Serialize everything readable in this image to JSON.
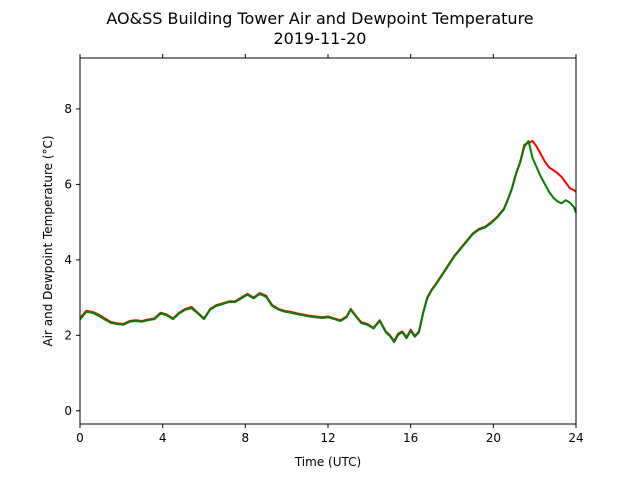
{
  "chart_data": {
    "type": "line",
    "title": "AO&SS Building Tower Air and Dewpoint Temperature",
    "subtitle": "2019-11-20",
    "xlabel": "Time (UTC)",
    "ylabel": "Air and Dewpoint Temperature (°C)",
    "xlim": [
      0,
      24
    ],
    "ylim": [
      -0.35,
      9.35
    ],
    "xticks": [
      0,
      4,
      8,
      12,
      16,
      20,
      24
    ],
    "yticks": [
      0,
      2,
      4,
      6,
      8
    ],
    "grid": false,
    "series": [
      {
        "color": "#ff0000",
        "x": [
          0,
          0.3,
          0.6,
          0.9,
          1.2,
          1.5,
          1.8,
          2.1,
          2.4,
          2.7,
          3.0,
          3.3,
          3.6,
          3.9,
          4.2,
          4.5,
          4.8,
          5.1,
          5.4,
          5.7,
          6.0,
          6.3,
          6.6,
          6.9,
          7.2,
          7.5,
          7.8,
          8.1,
          8.4,
          8.7,
          9.0,
          9.3,
          9.6,
          9.9,
          10.2,
          10.5,
          10.8,
          11.1,
          11.4,
          11.7,
          12.0,
          12.3,
          12.6,
          12.9,
          13.1,
          13.3,
          13.6,
          13.9,
          14.2,
          14.5,
          14.8,
          15.0,
          15.2,
          15.4,
          15.6,
          15.8,
          16.0,
          16.2,
          16.4,
          16.6,
          16.8,
          17.0,
          17.2,
          17.5,
          17.8,
          18.1,
          18.4,
          18.7,
          19.0,
          19.3,
          19.6,
          19.9,
          20.2,
          20.5,
          20.7,
          20.9,
          21.1,
          21.3,
          21.5,
          21.7,
          21.9,
          22.1,
          22.3,
          22.5,
          22.7,
          22.9,
          23.1,
          23.3,
          23.5,
          23.7,
          23.9,
          24.0
        ],
        "y": [
          2.45,
          2.65,
          2.62,
          2.55,
          2.45,
          2.35,
          2.32,
          2.3,
          2.38,
          2.4,
          2.38,
          2.42,
          2.45,
          2.6,
          2.55,
          2.45,
          2.6,
          2.7,
          2.75,
          2.6,
          2.45,
          2.7,
          2.8,
          2.85,
          2.9,
          2.9,
          3.0,
          3.1,
          3.0,
          3.12,
          3.05,
          2.8,
          2.7,
          2.65,
          2.62,
          2.58,
          2.55,
          2.52,
          2.5,
          2.48,
          2.5,
          2.45,
          2.4,
          2.5,
          2.7,
          2.55,
          2.35,
          2.3,
          2.2,
          2.4,
          2.1,
          2.0,
          1.85,
          2.05,
          2.1,
          1.95,
          2.15,
          1.98,
          2.1,
          2.6,
          3.0,
          3.2,
          3.35,
          3.6,
          3.85,
          4.1,
          4.3,
          4.5,
          4.7,
          4.82,
          4.88,
          5.0,
          5.15,
          5.35,
          5.6,
          5.9,
          6.3,
          6.6,
          7.05,
          7.1,
          7.15,
          7.0,
          6.8,
          6.6,
          6.45,
          6.38,
          6.3,
          6.2,
          6.05,
          5.9,
          5.85,
          5.8
        ]
      },
      {
        "color": "#008000",
        "x": [
          0,
          0.3,
          0.6,
          0.9,
          1.2,
          1.5,
          1.8,
          2.1,
          2.4,
          2.7,
          3.0,
          3.3,
          3.6,
          3.9,
          4.2,
          4.5,
          4.8,
          5.1,
          5.4,
          5.7,
          6.0,
          6.3,
          6.6,
          6.9,
          7.2,
          7.5,
          7.8,
          8.1,
          8.4,
          8.7,
          9.0,
          9.3,
          9.6,
          9.9,
          10.2,
          10.5,
          10.8,
          11.1,
          11.4,
          11.7,
          12.0,
          12.3,
          12.6,
          12.9,
          13.1,
          13.3,
          13.6,
          13.9,
          14.2,
          14.5,
          14.8,
          15.0,
          15.2,
          15.4,
          15.6,
          15.8,
          16.0,
          16.2,
          16.4,
          16.6,
          16.8,
          17.0,
          17.2,
          17.5,
          17.8,
          18.1,
          18.4,
          18.7,
          19.0,
          19.3,
          19.6,
          19.9,
          20.2,
          20.5,
          20.7,
          20.9,
          21.1,
          21.3,
          21.5,
          21.7,
          21.9,
          22.1,
          22.3,
          22.5,
          22.7,
          22.9,
          23.1,
          23.3,
          23.5,
          23.7,
          23.9,
          24.0
        ],
        "y": [
          2.42,
          2.62,
          2.6,
          2.52,
          2.42,
          2.33,
          2.3,
          2.28,
          2.36,
          2.38,
          2.36,
          2.4,
          2.43,
          2.58,
          2.53,
          2.43,
          2.58,
          2.68,
          2.72,
          2.58,
          2.43,
          2.68,
          2.78,
          2.83,
          2.88,
          2.88,
          2.98,
          3.08,
          2.98,
          3.1,
          3.02,
          2.78,
          2.68,
          2.63,
          2.6,
          2.56,
          2.53,
          2.5,
          2.48,
          2.46,
          2.48,
          2.43,
          2.38,
          2.48,
          2.68,
          2.53,
          2.33,
          2.28,
          2.18,
          2.38,
          2.08,
          1.98,
          1.82,
          2.02,
          2.08,
          1.92,
          2.12,
          1.96,
          2.08,
          2.58,
          2.98,
          3.18,
          3.33,
          3.58,
          3.83,
          4.08,
          4.28,
          4.48,
          4.68,
          4.8,
          4.86,
          4.98,
          5.13,
          5.33,
          5.58,
          5.88,
          6.28,
          6.58,
          7.0,
          7.15,
          6.7,
          6.45,
          6.2,
          6.0,
          5.8,
          5.65,
          5.55,
          5.5,
          5.58,
          5.52,
          5.4,
          5.25
        ]
      }
    ]
  }
}
